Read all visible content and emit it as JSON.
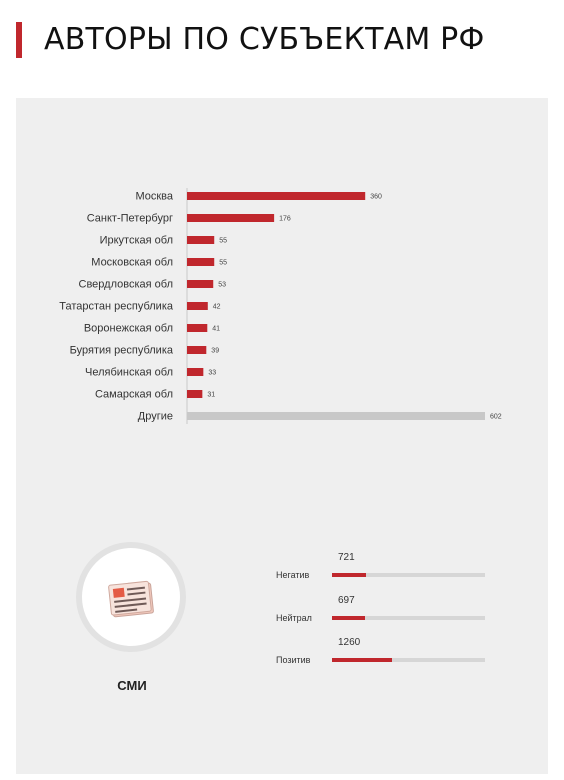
{
  "page": {
    "title": "АВТОРЫ ПО СУБЪЕКТАМ РФ"
  },
  "colors": {
    "accent": "#c0272d",
    "other": "#c8c8c8",
    "track": "#d6d6d6",
    "panel": "#efefef"
  },
  "chart_data": {
    "type": "bar",
    "orientation": "horizontal",
    "categories": [
      "Москва",
      "Санкт-Петербург",
      "Иркутская обл",
      "Московская обл",
      "Свердловская обл",
      "Татарстан республика",
      "Воронежская обл",
      "Бурятия республика",
      "Челябинская обл",
      "Самарская обл",
      "Другие"
    ],
    "values": [
      360,
      176,
      55,
      55,
      53,
      42,
      41,
      39,
      33,
      31,
      602
    ],
    "xlim": [
      0,
      602
    ],
    "grid": false,
    "legend": "none"
  },
  "media": {
    "label": "СМИ",
    "icon": "newspaper-icon"
  },
  "sentiment": {
    "max": 3200,
    "rows": [
      {
        "name": "Негатив",
        "value": 721
      },
      {
        "name": "Нейтрал",
        "value": 697
      },
      {
        "name": "Позитив",
        "value": 1260
      }
    ]
  }
}
